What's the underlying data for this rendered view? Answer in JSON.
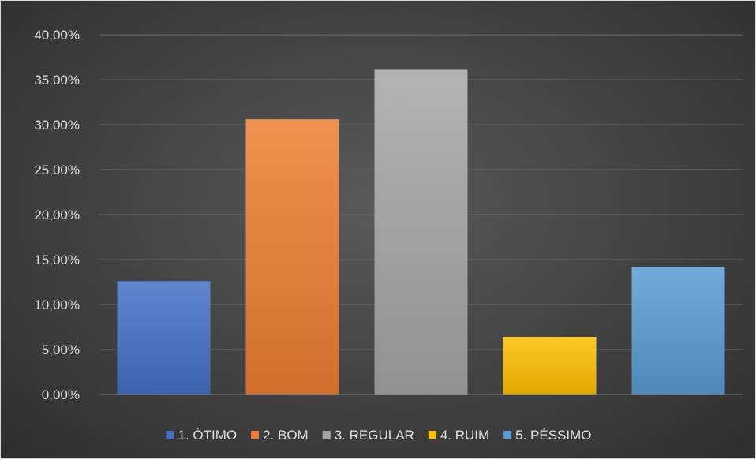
{
  "chart_data": {
    "type": "bar",
    "categories": [
      "1. ÓTIMO",
      "2. BOM",
      "3. REGULAR",
      "4. RUIM",
      "5. PÉSSIMO"
    ],
    "values": [
      12.6,
      30.6,
      36.1,
      6.4,
      14.2
    ],
    "colors": [
      "#4472c4",
      "#ed7d31",
      "#a5a5a5",
      "#ffc000",
      "#5b9bd5"
    ],
    "ylim": [
      0,
      40
    ],
    "yticks": [
      0,
      5,
      10,
      15,
      20,
      25,
      30,
      35,
      40
    ],
    "ytick_labels": [
      "0,00%",
      "5,00%",
      "10,00%",
      "15,00%",
      "20,00%",
      "25,00%",
      "30,00%",
      "35,00%",
      "40,00%"
    ],
    "grid": true,
    "legend_position": "bottom",
    "title": "",
    "xlabel": "",
    "ylabel": ""
  }
}
